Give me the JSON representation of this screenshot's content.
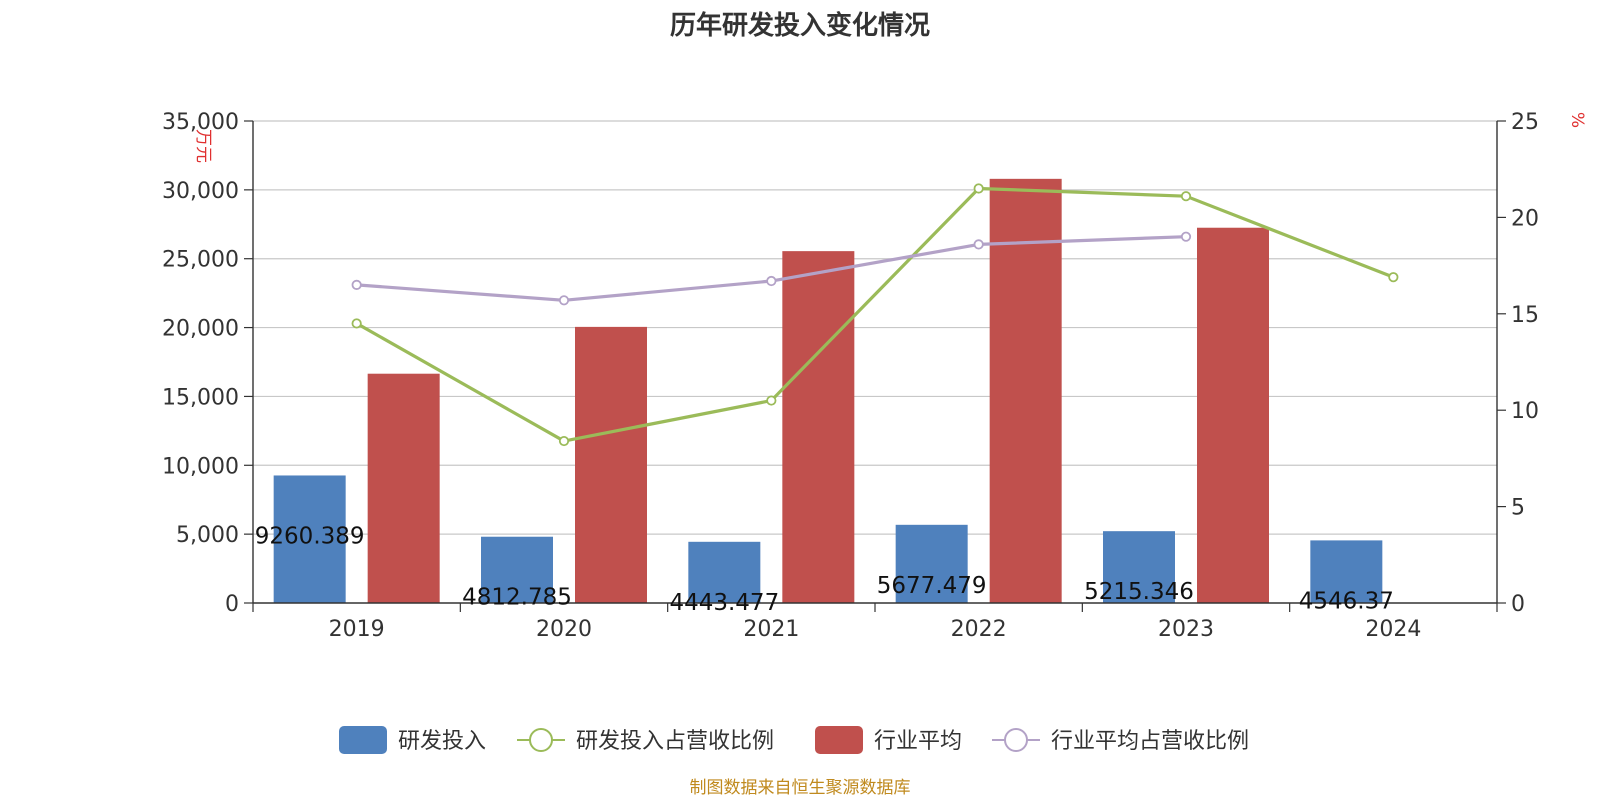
{
  "chart_data": {
    "type": "bar",
    "title": "历年研发投入变化情况",
    "categories": [
      "2019",
      "2020",
      "2021",
      "2022",
      "2023",
      "2024"
    ],
    "y_left": {
      "label": "万元",
      "min": 0,
      "max": 35000,
      "ticks": [
        "0",
        "5,000",
        "10,000",
        "15,000",
        "20,000",
        "25,000",
        "30,000",
        "35,000"
      ]
    },
    "y_right": {
      "label": "%",
      "min": 0,
      "max": 25,
      "ticks": [
        "0",
        "5",
        "10",
        "15",
        "20",
        "25"
      ]
    },
    "grid": true,
    "legend_position": "bottom",
    "series": [
      {
        "name": "研发投入",
        "type": "bar",
        "axis": "left",
        "color": "#4f81bd",
        "values": [
          9260.389,
          4812.785,
          4443.477,
          5677.479,
          5215.346,
          4546.37
        ],
        "labels": [
          "9260.389",
          "4812.785",
          "4443.477",
          "5677.479",
          "5215.346",
          "4546.37"
        ]
      },
      {
        "name": "研发投入占营收比例",
        "type": "line",
        "axis": "right",
        "color": "#9bbb59",
        "values": [
          14.5,
          8.4,
          10.5,
          21.5,
          21.1,
          16.9
        ]
      },
      {
        "name": "行业平均",
        "type": "bar",
        "axis": "left",
        "color": "#c0504d",
        "values": [
          16650,
          20050,
          25550,
          30800,
          27250,
          null
        ]
      },
      {
        "name": "行业平均占营收比例",
        "type": "line",
        "axis": "right",
        "color": "#b3a2c7",
        "values": [
          16.5,
          15.7,
          16.7,
          18.6,
          19.0,
          null
        ]
      }
    ]
  },
  "source": "制图数据来自恒生聚源数据库"
}
